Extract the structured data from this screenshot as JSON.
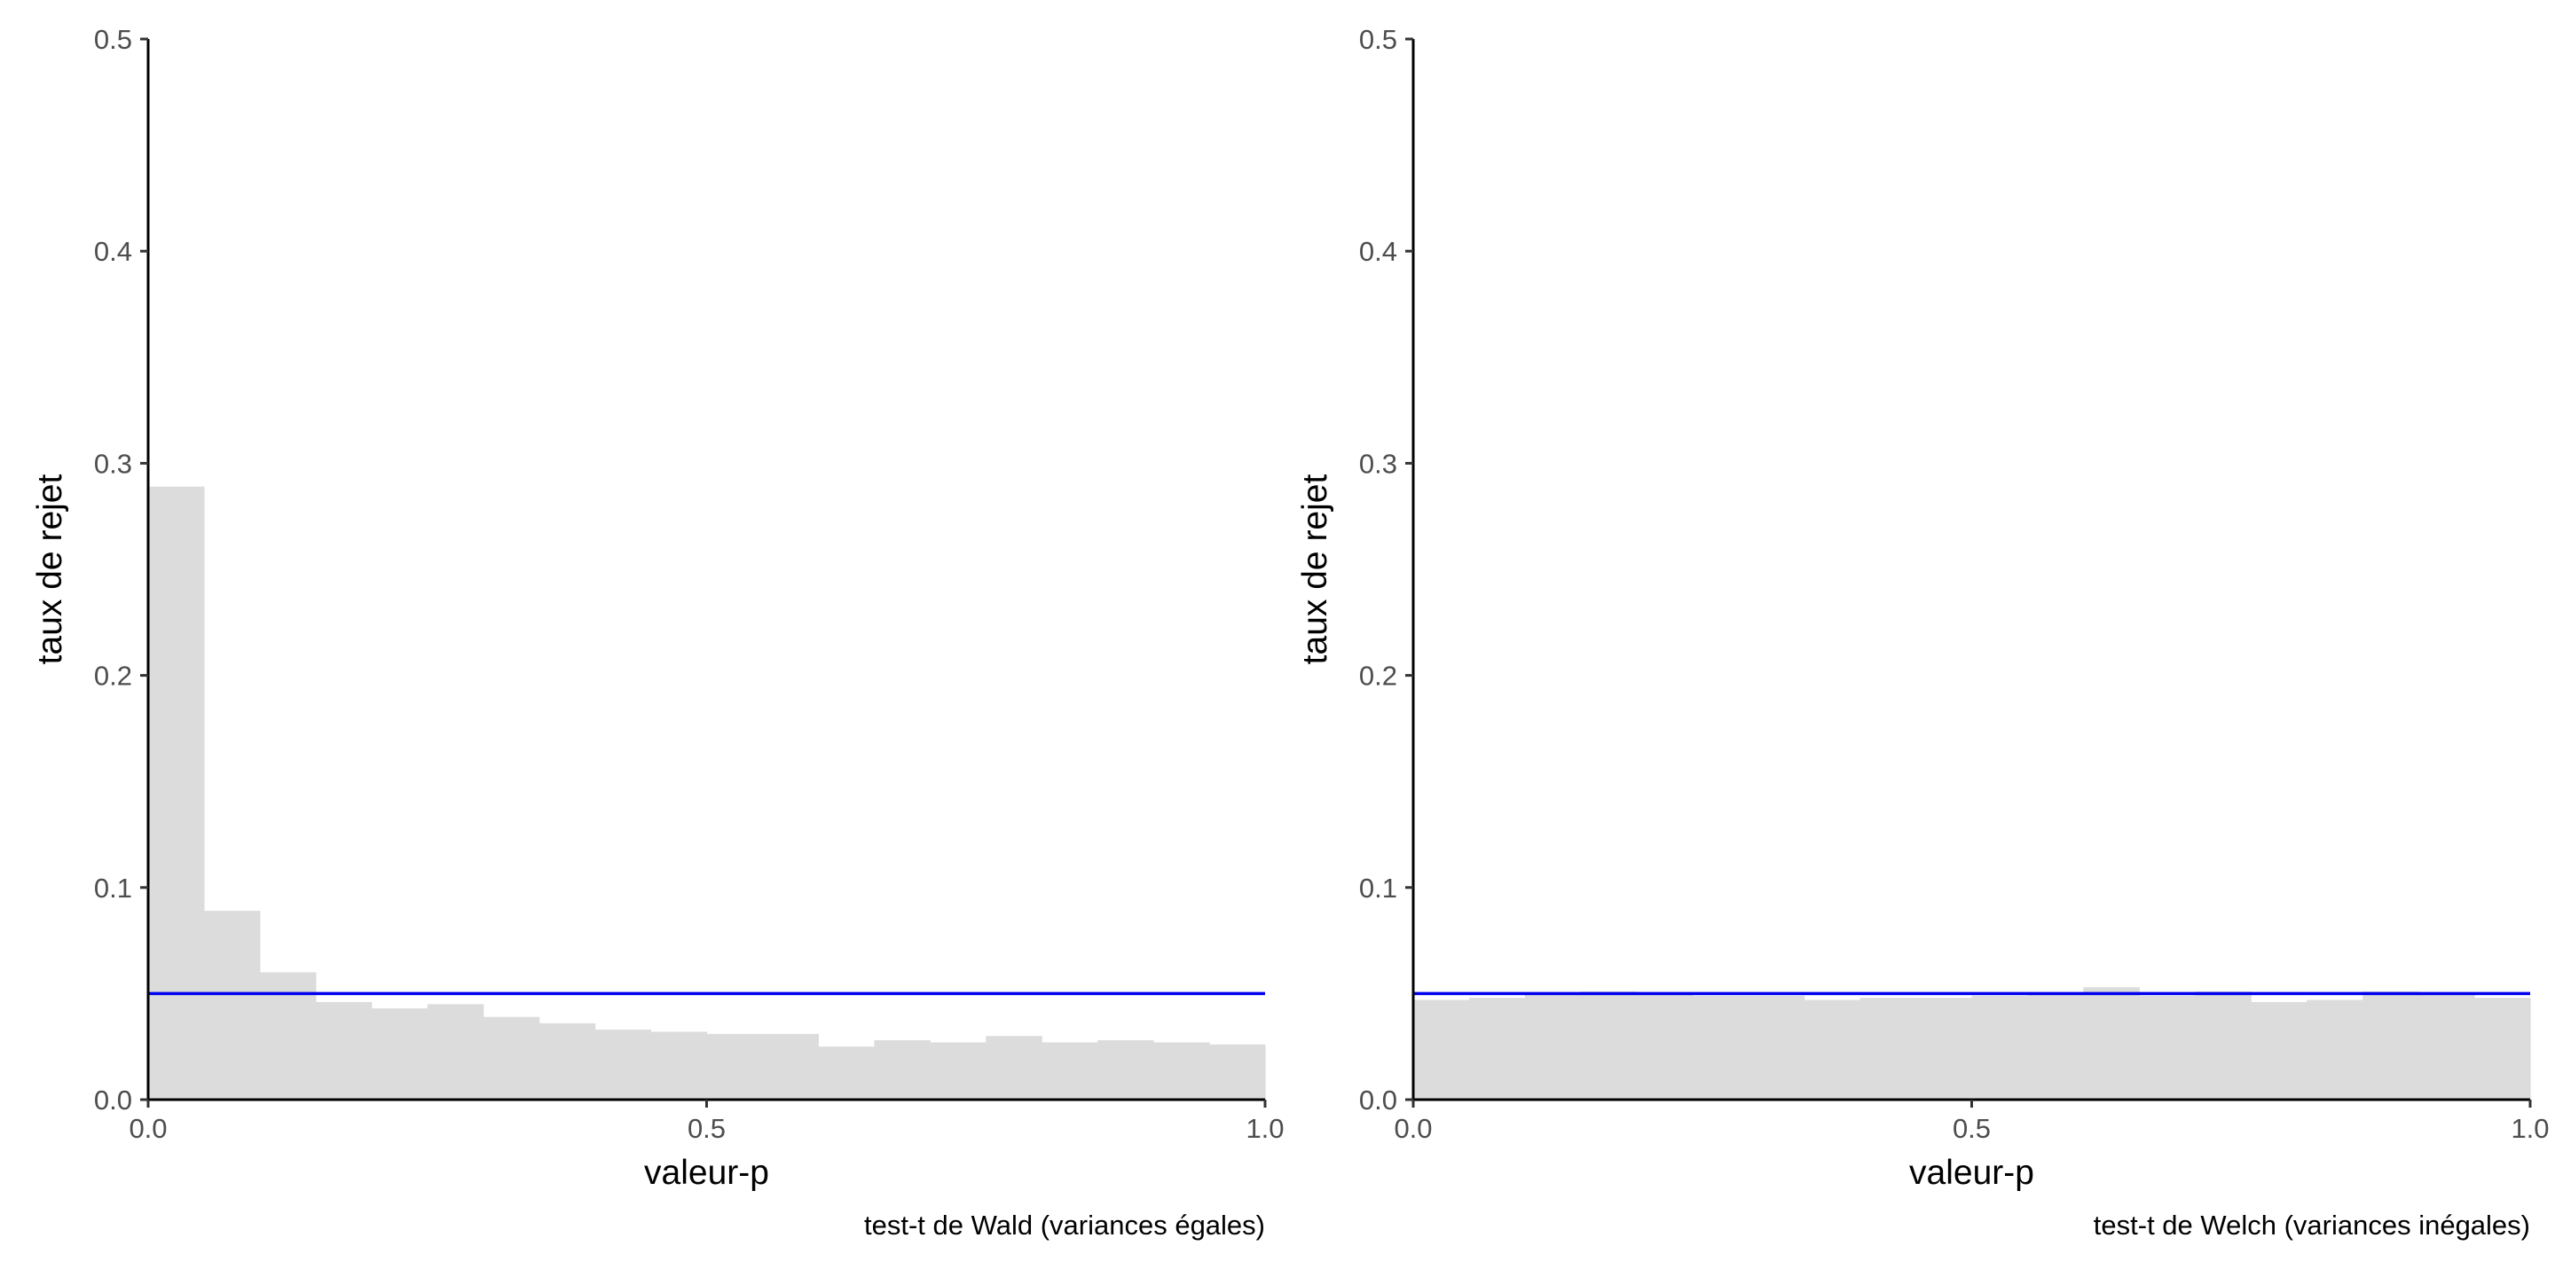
{
  "chart_data": [
    {
      "type": "bar",
      "caption": "test-t de Wald (variances égales)",
      "xlabel": "valeur-p",
      "ylabel": "taux de rejet",
      "xlim": [
        0,
        1
      ],
      "ylim": [
        0,
        0.5
      ],
      "x_ticks": [
        "0.0",
        "0.5",
        "1.0"
      ],
      "y_ticks": [
        "0.0",
        "0.1",
        "0.2",
        "0.3",
        "0.4",
        "0.5"
      ],
      "bin_edges": [
        0,
        0.05,
        0.1,
        0.15,
        0.2,
        0.25,
        0.3,
        0.35,
        0.4,
        0.45,
        0.5,
        0.55,
        0.6,
        0.65,
        0.7,
        0.75,
        0.8,
        0.85,
        0.9,
        0.95,
        1.0
      ],
      "values": [
        0.289,
        0.089,
        0.06,
        0.046,
        0.043,
        0.045,
        0.039,
        0.036,
        0.033,
        0.032,
        0.031,
        0.031,
        0.025,
        0.028,
        0.027,
        0.03,
        0.027,
        0.028,
        0.027,
        0.026
      ],
      "reference_line": 0.05,
      "bar_color": "#dcdcdc",
      "line_color": "#0000ee",
      "grid": false
    },
    {
      "type": "bar",
      "caption": "test-t de Welch (variances inégales)",
      "xlabel": "valeur-p",
      "ylabel": "taux de rejet",
      "xlim": [
        0,
        1
      ],
      "ylim": [
        0,
        0.5
      ],
      "x_ticks": [
        "0.0",
        "0.5",
        "1.0"
      ],
      "y_ticks": [
        "0.0",
        "0.1",
        "0.2",
        "0.3",
        "0.4",
        "0.5"
      ],
      "bin_edges": [
        0,
        0.05,
        0.1,
        0.15,
        0.2,
        0.25,
        0.3,
        0.35,
        0.4,
        0.45,
        0.5,
        0.55,
        0.6,
        0.65,
        0.7,
        0.75,
        0.8,
        0.85,
        0.9,
        0.95,
        1.0
      ],
      "values": [
        0.047,
        0.048,
        0.05,
        0.051,
        0.05,
        0.049,
        0.049,
        0.047,
        0.048,
        0.048,
        0.049,
        0.05,
        0.053,
        0.049,
        0.051,
        0.046,
        0.047,
        0.051,
        0.05,
        0.048
      ],
      "reference_line": 0.05,
      "bar_color": "#dcdcdc",
      "line_color": "#0000ee",
      "grid": false
    }
  ]
}
